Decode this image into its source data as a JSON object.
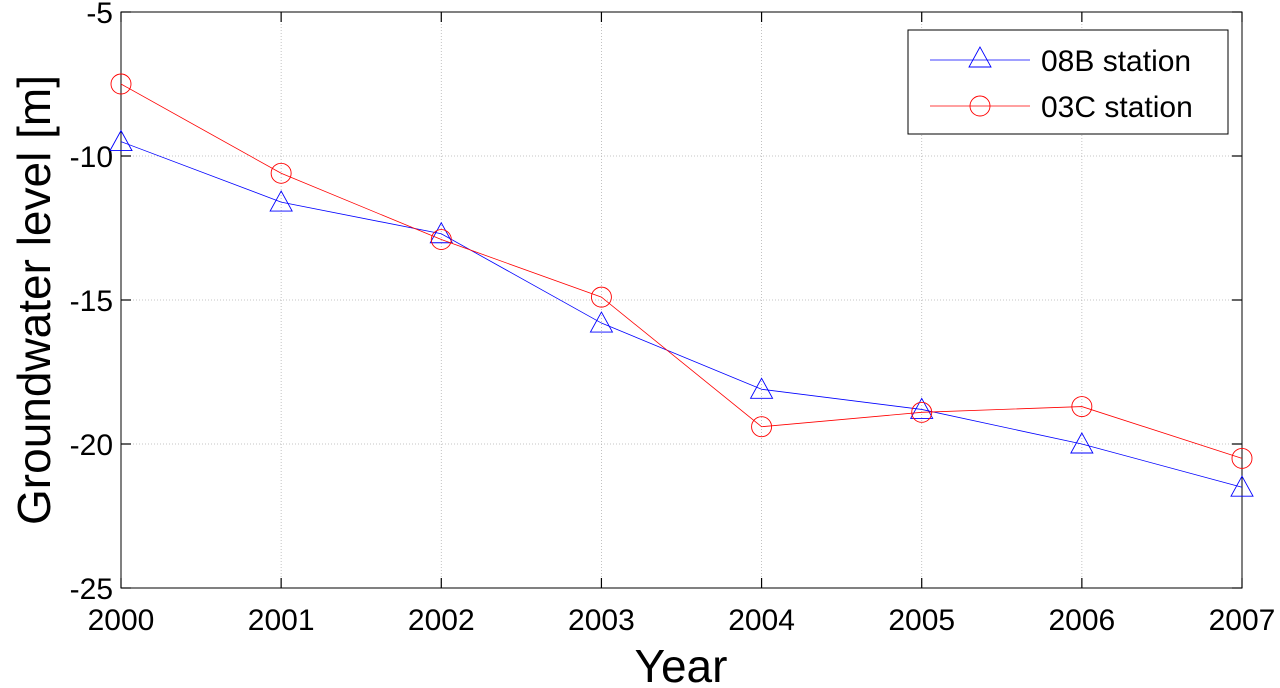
{
  "chart_data": {
    "type": "line",
    "xlabel": "Year",
    "ylabel": "Groundwater level [m]",
    "x": [
      2000,
      2001,
      2002,
      2003,
      2004,
      2005,
      2006,
      2007
    ],
    "xlim": [
      2000,
      2007
    ],
    "ylim": [
      -25,
      -5
    ],
    "xticks": [
      "2000",
      "2001",
      "2002",
      "2003",
      "2004",
      "2005",
      "2006",
      "2007"
    ],
    "yticks": [
      -5,
      -10,
      -15,
      -20,
      -25
    ],
    "ytick_labels": [
      "-5",
      "-10",
      "-15",
      "-20",
      "-25"
    ],
    "grid": true,
    "legend_position": "top-right",
    "series": [
      {
        "name": "08B station",
        "color": "#0000ff",
        "marker": "triangle",
        "values": [
          -9.5,
          -11.6,
          -12.7,
          -15.8,
          -18.1,
          -18.8,
          -20.0,
          -21.5
        ]
      },
      {
        "name": "03C station",
        "color": "#ff0000",
        "marker": "circle",
        "values": [
          -7.5,
          -10.6,
          -12.9,
          -14.9,
          -19.4,
          -18.9,
          -18.7,
          -20.5
        ]
      }
    ]
  }
}
